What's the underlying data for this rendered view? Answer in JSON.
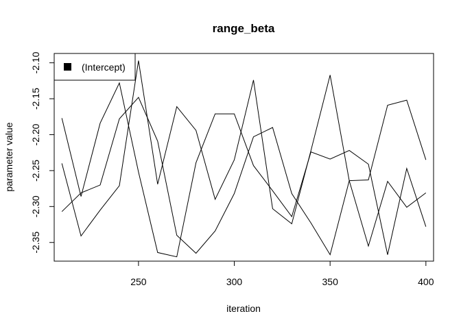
{
  "chart_data": {
    "type": "line",
    "title": "range_beta",
    "xlabel": "iteration",
    "ylabel": "parameter value",
    "xlim": [
      206,
      404
    ],
    "ylim": [
      -2.376,
      -2.087
    ],
    "x_ticks": [
      250,
      300,
      350,
      400
    ],
    "x_tick_labels": [
      "250",
      "300",
      "350",
      "400"
    ],
    "y_ticks": [
      -2.1,
      -2.15,
      -2.2,
      -2.25,
      -2.3,
      -2.35
    ],
    "y_tick_labels": [
      "-2.10",
      "-2.15",
      "-2.20",
      "-2.25",
      "-2.30",
      "-2.35"
    ],
    "grid": false,
    "legend": {
      "position": "top-left",
      "entries": [
        "(Intercept)"
      ]
    },
    "line_color": "#000000",
    "x": [
      210,
      220,
      230,
      240,
      250,
      260,
      270,
      280,
      290,
      300,
      310,
      320,
      330,
      340,
      350,
      360,
      370,
      380,
      390,
      400
    ],
    "series": [
      {
        "values": [
          -2.177,
          -2.286,
          -2.184,
          -2.128,
          -2.252,
          -2.364,
          -2.37,
          -2.239,
          -2.171,
          -2.171,
          -2.243,
          -2.278,
          -2.314,
          -2.224,
          -2.234,
          -2.222,
          -2.241,
          -2.367,
          -2.247,
          -2.328
        ]
      },
      {
        "values": [
          -2.24,
          -2.341,
          -2.305,
          -2.271,
          -2.097,
          -2.269,
          -2.161,
          -2.194,
          -2.29,
          -2.235,
          -2.124,
          -2.303,
          -2.324,
          -2.222,
          -2.117,
          -2.264,
          -2.263,
          -2.159,
          -2.152,
          -2.235
        ]
      },
      {
        "values": [
          -2.307,
          -2.281,
          -2.27,
          -2.178,
          -2.148,
          -2.209,
          -2.34,
          -2.365,
          -2.334,
          -2.282,
          -2.203,
          -2.19,
          -2.282,
          -2.323,
          -2.367,
          -2.264,
          -2.355,
          -2.265,
          -2.301,
          -2.281
        ]
      }
    ]
  }
}
